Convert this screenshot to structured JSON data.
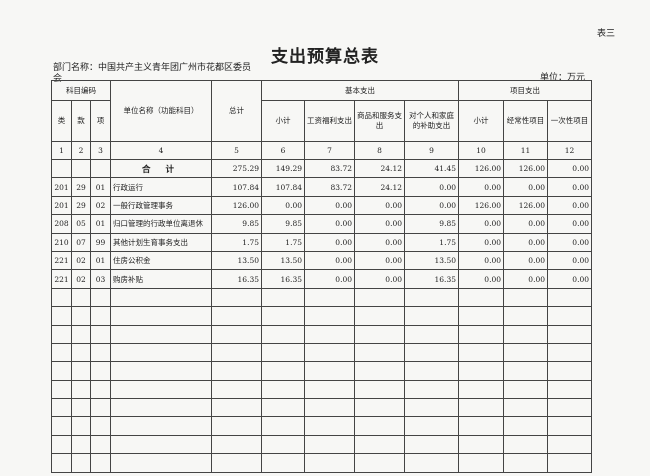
{
  "sheet_no": "表三",
  "title": "支出预算总表",
  "department": "部门名称：中国共产主义青年团广州市花都区委员会",
  "unit": "单位：万元",
  "header": {
    "code": "科目编码",
    "name": "单位名称（功能科目）",
    "total": "总计",
    "basic": "基本支出",
    "project": "项目支出",
    "lei": "类",
    "kuan": "款",
    "xiang": "项",
    "basic_subtotal": "小计",
    "salary": "工资福利支出",
    "goods": "商品和服务支出",
    "personal": "对个人和家庭的补助支出",
    "project_subtotal": "小计",
    "recurring": "经常性项目",
    "onetime": "一次性项目"
  },
  "col_numbers": [
    "1",
    "2",
    "3",
    "4",
    "5",
    "6",
    "7",
    "8",
    "9",
    "10",
    "11",
    "12"
  ],
  "total_row": {
    "label": "合 计",
    "values": [
      "275.29",
      "149.29",
      "83.72",
      "24.12",
      "41.45",
      "126.00",
      "126.00",
      "0.00"
    ]
  },
  "rows": [
    {
      "lei": "201",
      "kuan": "29",
      "xiang": "01",
      "name": "行政运行",
      "values": [
        "107.84",
        "107.84",
        "83.72",
        "24.12",
        "0.00",
        "0.00",
        "0.00",
        "0.00"
      ]
    },
    {
      "lei": "201",
      "kuan": "29",
      "xiang": "02",
      "name": "一般行政管理事务",
      "values": [
        "126.00",
        "0.00",
        "0.00",
        "0.00",
        "0.00",
        "126.00",
        "126.00",
        "0.00"
      ]
    },
    {
      "lei": "208",
      "kuan": "05",
      "xiang": "01",
      "name": "归口管理的行政单位离退休",
      "values": [
        "9.85",
        "9.85",
        "0.00",
        "0.00",
        "9.85",
        "0.00",
        "0.00",
        "0.00"
      ]
    },
    {
      "lei": "210",
      "kuan": "07",
      "xiang": "99",
      "name": "其他计划生育事务支出",
      "values": [
        "1.75",
        "1.75",
        "0.00",
        "0.00",
        "1.75",
        "0.00",
        "0.00",
        "0.00"
      ]
    },
    {
      "lei": "221",
      "kuan": "02",
      "xiang": "01",
      "name": "住房公积金",
      "values": [
        "13.50",
        "13.50",
        "0.00",
        "0.00",
        "13.50",
        "0.00",
        "0.00",
        "0.00"
      ]
    },
    {
      "lei": "221",
      "kuan": "02",
      "xiang": "03",
      "name": "购房补贴",
      "values": [
        "16.35",
        "16.35",
        "0.00",
        "0.00",
        "16.35",
        "0.00",
        "0.00",
        "0.00"
      ]
    }
  ]
}
